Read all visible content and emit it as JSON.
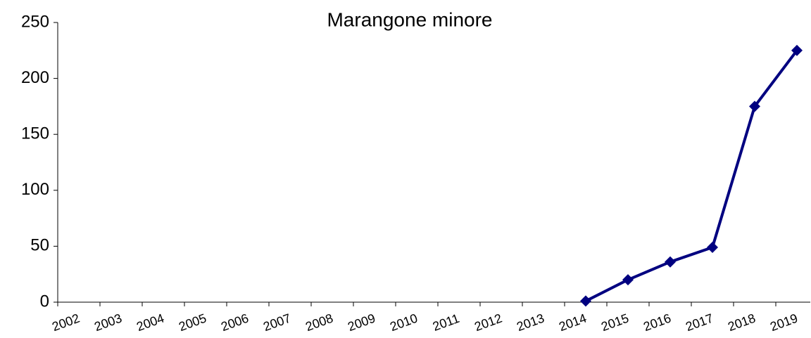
{
  "chart_data": {
    "type": "line",
    "title": "Marangone minore",
    "categories": [
      "2002",
      "2003",
      "2004",
      "2005",
      "2006",
      "2007",
      "2008",
      "2009",
      "2010",
      "2011",
      "2012",
      "2013",
      "2014",
      "2015",
      "2016",
      "2017",
      "2018",
      "2019"
    ],
    "series": [
      {
        "name": "Marangone minore",
        "color": "#000080",
        "values": [
          null,
          null,
          null,
          null,
          null,
          null,
          null,
          null,
          null,
          null,
          null,
          null,
          1,
          20,
          36,
          49,
          175,
          225
        ]
      }
    ],
    "ylim": [
      0,
      250
    ],
    "yticks": [
      0,
      50,
      100,
      150,
      200,
      250
    ],
    "grid": false
  }
}
